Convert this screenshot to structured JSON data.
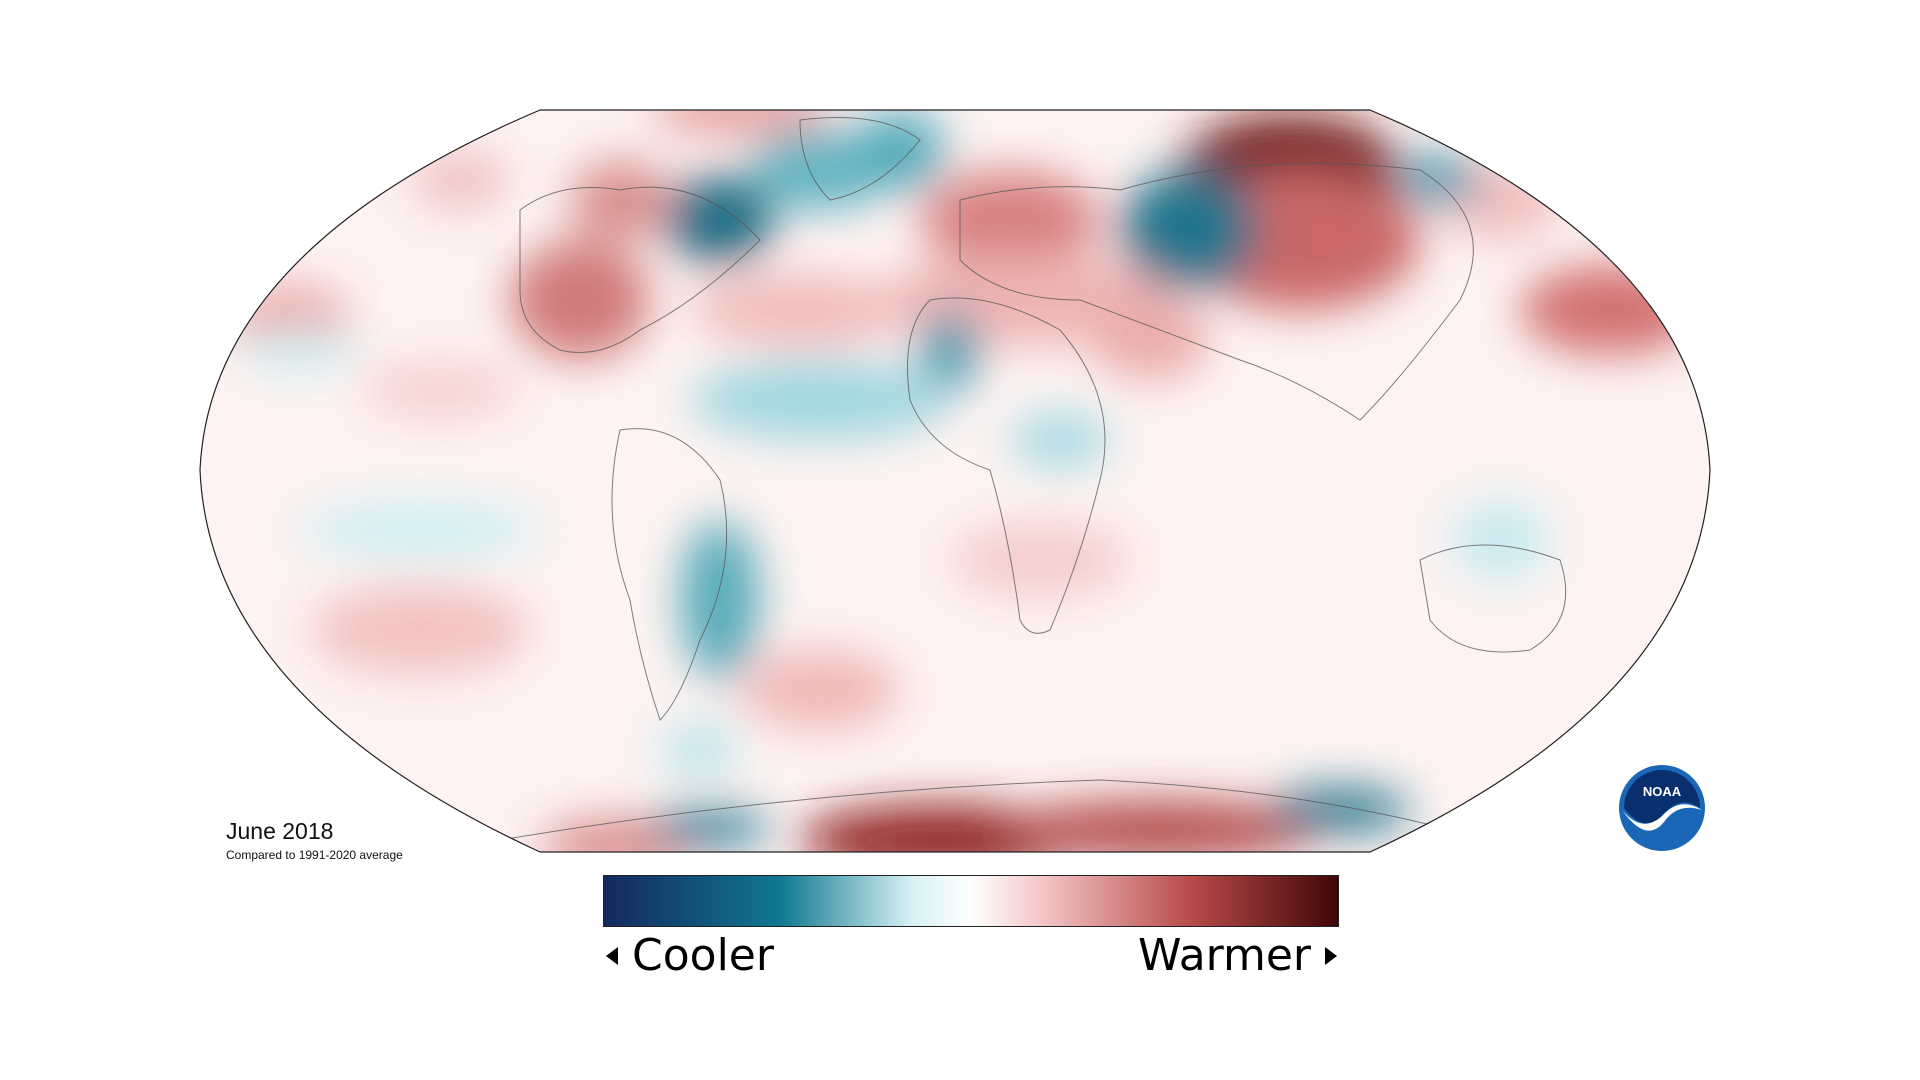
{
  "caption": {
    "title": "June 2018",
    "subtitle": "Compared to 1991-2020 average"
  },
  "legend": {
    "low_label": "Cooler",
    "high_label": "Warmer",
    "colors": [
      "#14285e",
      "#0f7890",
      "#d8f2f4",
      "#ffffff",
      "#f3c4c4",
      "#b84a4a",
      "#400606"
    ]
  },
  "logo": {
    "text": "NOAA",
    "colors": {
      "outer": "#1a67b8",
      "inner": "#0a2f6e",
      "ring": "#ffffff"
    }
  },
  "map": {
    "projection": "robinson",
    "anomalies": [
      {
        "region": "central-siberia",
        "tone": "warm-strong"
      },
      {
        "region": "west-russia",
        "tone": "cool-strong"
      },
      {
        "region": "northern-europe",
        "tone": "warm"
      },
      {
        "region": "hudson-bay",
        "tone": "cool-strong"
      },
      {
        "region": "western-north-america",
        "tone": "warm"
      },
      {
        "region": "north-atlantic",
        "tone": "cool"
      },
      {
        "region": "south-america-interior",
        "tone": "cool"
      },
      {
        "region": "west-antarctica",
        "tone": "warm-strong"
      },
      {
        "region": "north-pacific-east",
        "tone": "warm"
      }
    ]
  }
}
